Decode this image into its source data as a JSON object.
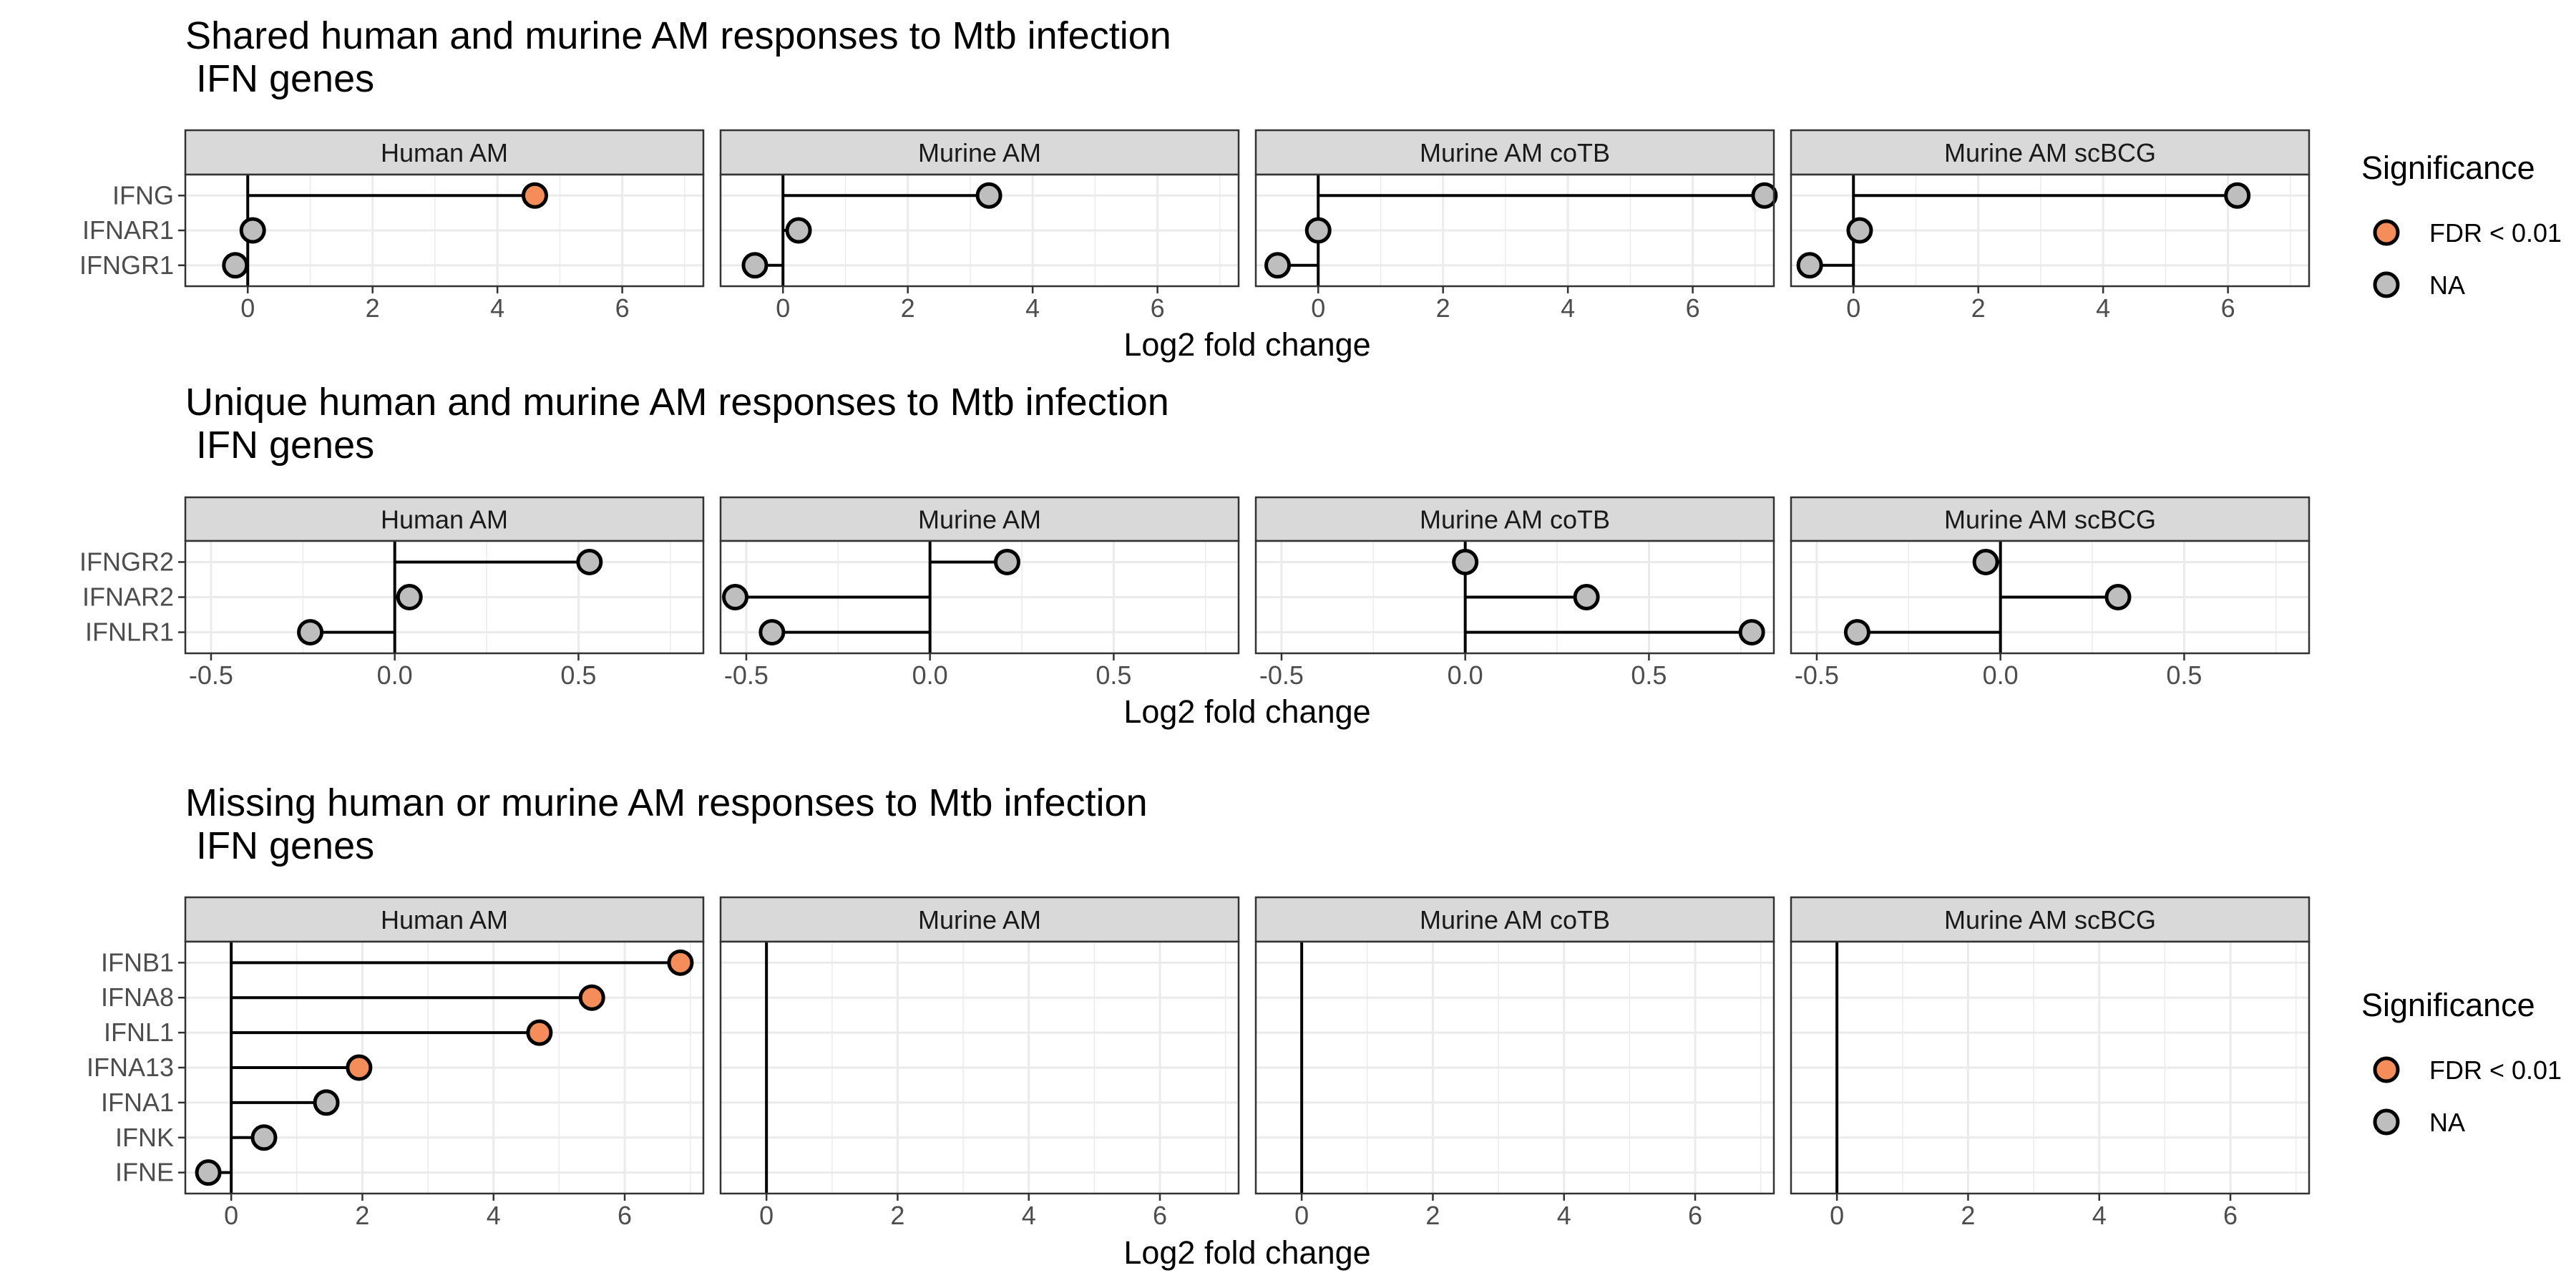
{
  "chart_data": [
    {
      "type": "lollipop",
      "title": "Shared human and murine AM responses to Mtb infection\n IFN genes",
      "xlabel": "Log2 fold change",
      "ylabel": "",
      "xlim": [
        -1.0,
        7.3
      ],
      "xticks": [
        0,
        2,
        4,
        6
      ],
      "xtick_labels": [
        "0",
        "2",
        "4",
        "6"
      ],
      "genes": [
        "IFNG",
        "IFNAR1",
        "IFNGR1"
      ],
      "panels": [
        {
          "name": "Human AM",
          "points": [
            {
              "gene": "IFNG",
              "value": 4.6,
              "significance": "FDR < 0.01"
            },
            {
              "gene": "IFNAR1",
              "value": 0.08,
              "significance": "NA"
            },
            {
              "gene": "IFNGR1",
              "value": -0.2,
              "significance": "NA"
            }
          ]
        },
        {
          "name": "Murine AM",
          "points": [
            {
              "gene": "IFNG",
              "value": 3.3,
              "significance": "NA"
            },
            {
              "gene": "IFNAR1",
              "value": 0.25,
              "significance": "NA"
            },
            {
              "gene": "IFNGR1",
              "value": -0.45,
              "significance": "NA"
            }
          ]
        },
        {
          "name": "Murine AM coTB",
          "points": [
            {
              "gene": "IFNG",
              "value": 7.15,
              "significance": "NA"
            },
            {
              "gene": "IFNAR1",
              "value": 0.0,
              "significance": "NA"
            },
            {
              "gene": "IFNGR1",
              "value": -0.65,
              "significance": "NA"
            }
          ]
        },
        {
          "name": "Murine AM scBCG",
          "points": [
            {
              "gene": "IFNG",
              "value": 6.15,
              "significance": "NA"
            },
            {
              "gene": "IFNAR1",
              "value": 0.1,
              "significance": "NA"
            },
            {
              "gene": "IFNGR1",
              "value": -0.7,
              "significance": "NA"
            }
          ]
        }
      ]
    },
    {
      "type": "lollipop",
      "title": "Unique human and murine AM responses to Mtb infection\n IFN genes",
      "xlabel": "Log2 fold change",
      "ylabel": "",
      "xlim": [
        -0.57,
        0.84
      ],
      "xticks": [
        -0.5,
        0.0,
        0.5
      ],
      "xtick_labels": [
        "-0.5",
        "0.0",
        "0.5"
      ],
      "genes": [
        "IFNGR2",
        "IFNAR2",
        "IFNLR1"
      ],
      "panels": [
        {
          "name": "Human AM",
          "points": [
            {
              "gene": "IFNGR2",
              "value": 0.53,
              "significance": "NA"
            },
            {
              "gene": "IFNAR2",
              "value": 0.04,
              "significance": "NA"
            },
            {
              "gene": "IFNLR1",
              "value": -0.23,
              "significance": "NA"
            }
          ]
        },
        {
          "name": "Murine AM",
          "points": [
            {
              "gene": "IFNGR2",
              "value": 0.21,
              "significance": "NA"
            },
            {
              "gene": "IFNAR2",
              "value": -0.53,
              "significance": "NA"
            },
            {
              "gene": "IFNLR1",
              "value": -0.43,
              "significance": "NA"
            }
          ]
        },
        {
          "name": "Murine AM coTB",
          "points": [
            {
              "gene": "IFNGR2",
              "value": 0.0,
              "significance": "NA"
            },
            {
              "gene": "IFNAR2",
              "value": 0.33,
              "significance": "NA"
            },
            {
              "gene": "IFNLR1",
              "value": 0.78,
              "significance": "NA"
            }
          ]
        },
        {
          "name": "Murine AM scBCG",
          "points": [
            {
              "gene": "IFNGR2",
              "value": -0.04,
              "significance": "NA"
            },
            {
              "gene": "IFNAR2",
              "value": 0.32,
              "significance": "NA"
            },
            {
              "gene": "IFNLR1",
              "value": -0.39,
              "significance": "NA"
            }
          ]
        }
      ]
    },
    {
      "type": "lollipop",
      "title": "Missing human or murine AM responses to Mtb infection\n IFN genes",
      "xlabel": "Log2 fold change",
      "ylabel": "",
      "xlim": [
        -0.7,
        7.2
      ],
      "xticks": [
        0,
        2,
        4,
        6
      ],
      "xtick_labels": [
        "0",
        "2",
        "4",
        "6"
      ],
      "genes": [
        "IFNB1",
        "IFNA8",
        "IFNL1",
        "IFNA13",
        "IFNA1",
        "IFNK",
        "IFNE"
      ],
      "panels": [
        {
          "name": "Human AM",
          "points": [
            {
              "gene": "IFNB1",
              "value": 6.85,
              "significance": "FDR < 0.01"
            },
            {
              "gene": "IFNA8",
              "value": 5.5,
              "significance": "FDR < 0.01"
            },
            {
              "gene": "IFNL1",
              "value": 4.7,
              "significance": "FDR < 0.01"
            },
            {
              "gene": "IFNA13",
              "value": 1.95,
              "significance": "FDR < 0.01"
            },
            {
              "gene": "IFNA1",
              "value": 1.45,
              "significance": "NA"
            },
            {
              "gene": "IFNK",
              "value": 0.5,
              "significance": "NA"
            },
            {
              "gene": "IFNE",
              "value": -0.35,
              "significance": "NA"
            }
          ]
        },
        {
          "name": "Murine AM",
          "points": []
        },
        {
          "name": "Murine AM coTB",
          "points": []
        },
        {
          "name": "Murine AM scBCG",
          "points": []
        }
      ]
    }
  ],
  "legends": [
    {
      "title": "Significance",
      "entries": [
        {
          "label": "FDR < 0.01",
          "color": "#F58D5B"
        },
        {
          "label": "NA",
          "color": "#BEBEBE"
        }
      ]
    },
    {
      "title": "Significance",
      "entries": [
        {
          "label": "FDR < 0.01",
          "color": "#F58D5B"
        },
        {
          "label": "NA",
          "color": "#BEBEBE"
        }
      ]
    }
  ],
  "colors": {
    "significant": "#F58D5B",
    "na": "#BEBEBE",
    "strip": "#D9D9D9",
    "grid": "#EBEBEB"
  }
}
